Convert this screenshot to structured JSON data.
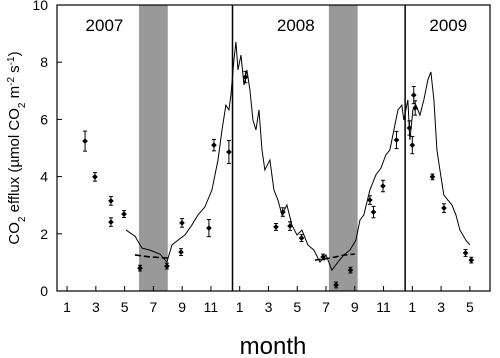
{
  "chart_data": {
    "type": "line",
    "xlabel": "month",
    "ylabel": [
      {
        "text": "CO",
        "script": "base"
      },
      {
        "text": "2",
        "script": "sub"
      },
      {
        "text": " efflux (µmol CO",
        "script": "base"
      },
      {
        "text": "2",
        "script": "sub"
      },
      {
        "text": " m",
        "script": "base"
      },
      {
        "text": "-2",
        "script": "super"
      },
      {
        "text": " s",
        "script": "base"
      },
      {
        "text": "-1",
        "script": "super"
      },
      {
        "text": ")",
        "script": "base"
      }
    ],
    "xlim": [
      0.3,
      30.4
    ],
    "ylim": [
      0,
      10
    ],
    "yticks": [
      0,
      2,
      4,
      6,
      8,
      10
    ],
    "xticks": [
      1,
      3,
      5,
      7,
      9,
      11,
      {
        "value": 13,
        "label": "1"
      },
      {
        "value": 15,
        "label": "3"
      },
      {
        "value": 17,
        "label": "5"
      },
      {
        "value": 19,
        "label": "7"
      },
      {
        "value": 21,
        "label": "9"
      },
      {
        "value": 23,
        "label": "11"
      },
      {
        "value": 25,
        "label": "1"
      },
      {
        "value": 27,
        "label": "3"
      },
      {
        "value": 29,
        "label": "5"
      }
    ],
    "grid": false,
    "years": [
      {
        "label": "2007",
        "x": 3.6
      },
      {
        "label": "2008",
        "x": 16.9
      },
      {
        "label": "2009",
        "x": 27.5
      }
    ],
    "year_boundaries": [
      12.5,
      24.5
    ],
    "shaded_spans": [
      [
        6.0,
        8.0
      ],
      [
        19.2,
        21.2
      ]
    ],
    "shade_color": "#999999",
    "series": [
      {
        "style": "solid",
        "color": "#000000",
        "x": [
          5.1,
          5.72,
          6.21,
          6.76,
          7.46,
          7.94,
          8.29,
          8.71,
          9.2,
          9.68,
          10.1,
          10.58,
          11.07,
          11.49,
          11.77,
          12.04,
          12.25,
          12.39,
          12.6,
          12.74,
          12.88,
          13.09,
          13.3,
          13.5,
          13.71,
          13.92,
          14.13,
          14.34,
          14.55,
          14.75,
          15.1,
          15.38,
          15.66,
          15.94,
          16.28,
          16.63,
          16.98,
          17.33,
          17.74,
          18.16,
          18.58,
          19.0,
          19.41,
          19.83,
          20.24,
          20.66,
          21.08,
          21.36,
          21.63,
          22.05,
          22.47,
          22.82,
          23.16,
          23.44,
          23.72,
          24.0,
          24.27,
          24.41,
          24.69,
          24.83,
          25.04,
          25.25,
          25.53,
          25.8,
          26.08,
          26.29,
          26.5,
          26.71,
          26.92,
          27.19,
          27.47,
          27.75,
          28.03,
          28.31,
          28.72,
          29.0
        ],
        "values": [
          2.13,
          1.92,
          1.5,
          1.43,
          1.29,
          1.01,
          1.61,
          1.78,
          1.96,
          2.31,
          2.66,
          2.94,
          3.53,
          4.58,
          5.63,
          6.5,
          6.33,
          6.85,
          8.08,
          8.71,
          7.73,
          8.25,
          7.2,
          7.73,
          7.03,
          5.98,
          5.63,
          6.33,
          4.93,
          4.23,
          4.58,
          3.53,
          3.18,
          2.66,
          3.01,
          2.31,
          1.96,
          2.13,
          1.61,
          1.43,
          1.01,
          1.26,
          0.73,
          1.01,
          1.26,
          1.43,
          1.78,
          2.48,
          2.66,
          3.53,
          4.06,
          4.3,
          4.76,
          4.93,
          5.63,
          6.33,
          6.5,
          5.98,
          6.68,
          5.28,
          6.33,
          6.5,
          6.15,
          6.68,
          7.38,
          7.66,
          6.68,
          4.93,
          4.23,
          3.36,
          3.18,
          3.01,
          2.66,
          2.13,
          1.78,
          1.61
        ]
      },
      {
        "style": "dashed",
        "color": "#000000",
        "x": [
          5.72,
          6.76,
          8.15,
          null,
          18.23,
          19.27,
          20.31,
          21.0
        ],
        "values": [
          1.26,
          1.19,
          1.15,
          null,
          1.08,
          1.15,
          1.26,
          1.29
        ]
      },
      {
        "style": "points",
        "color": "#000000",
        "x": [
          2.25,
          2.94,
          4.05,
          4.05,
          4.96,
          6.07,
          7.94,
          8.92,
          8.99,
          10.86,
          11.21,
          12.25,
          13.4,
          15.52,
          16.0,
          16.5,
          17.3,
          18.8,
          19.7,
          20.7,
          22.05,
          22.3,
          22.96,
          23.9,
          24.8,
          25.0,
          25.1,
          25.2,
          26.4,
          27.2,
          28.7,
          29.1
        ],
        "values": [
          5.24,
          3.99,
          3.15,
          2.41,
          2.69,
          0.8,
          0.87,
          1.36,
          2.38,
          2.2,
          5.1,
          4.86,
          7.48,
          2.24,
          2.76,
          2.27,
          1.85,
          1.19,
          0.21,
          0.73,
          3.18,
          2.76,
          3.67,
          5.28,
          5.7,
          5.1,
          6.85,
          6.4,
          3.99,
          2.9,
          1.33,
          1.08
        ],
        "errors": [
          0.35,
          0.15,
          0.15,
          0.15,
          0.12,
          0.1,
          0.1,
          0.12,
          0.15,
          0.3,
          0.2,
          0.4,
          0.2,
          0.12,
          0.15,
          0.15,
          0.12,
          0.1,
          0.1,
          0.1,
          0.15,
          0.2,
          0.2,
          0.3,
          0.25,
          0.3,
          0.3,
          0.25,
          0.1,
          0.15,
          0.12,
          0.1
        ]
      }
    ]
  }
}
